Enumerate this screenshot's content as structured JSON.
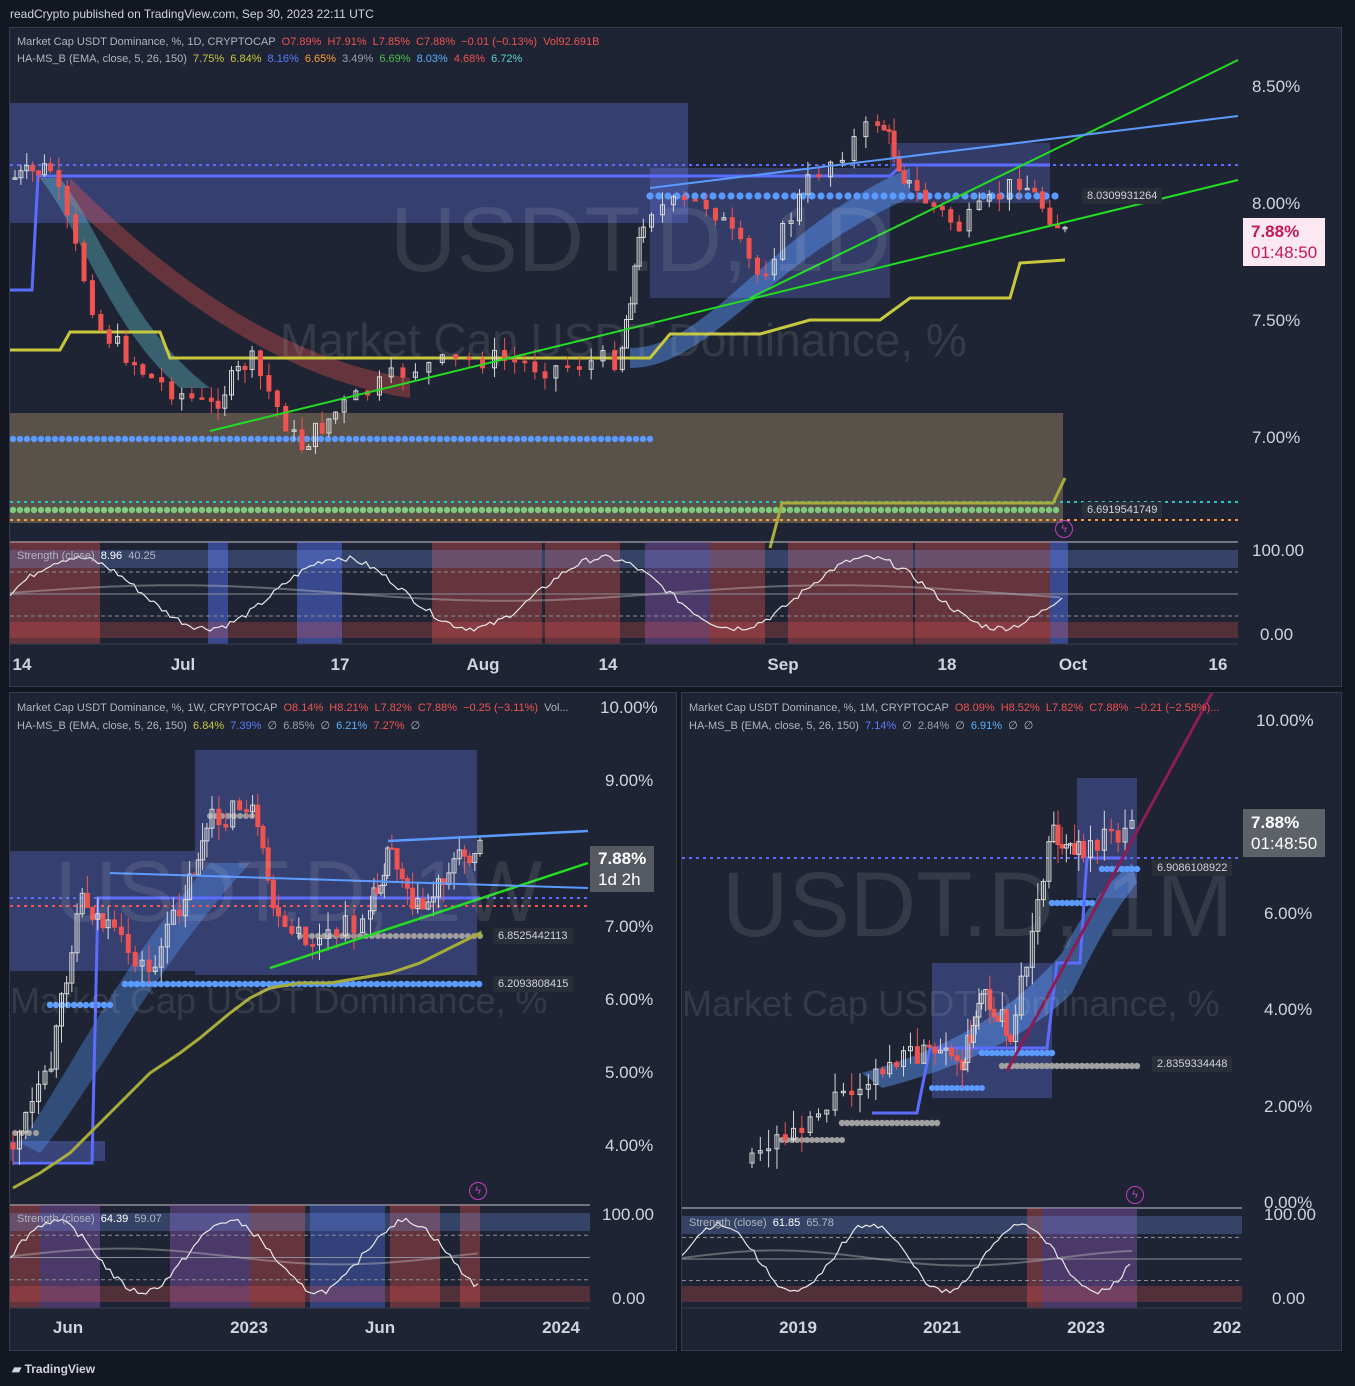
{
  "published": "readCrypto published on TradingView.com, Sep 30, 2023 22:11 UTC",
  "footer_brand": "TradingView",
  "colors": {
    "bg": "#131722",
    "panel": "#1e2433",
    "up": "#d9d9d9",
    "down": "#ef5350",
    "green": "#22dd22",
    "blue": "#4a6fff",
    "lightblue": "#5b9bff",
    "purple": "#8b1c55",
    "olive": "#a8ac3a"
  },
  "panels": {
    "daily": {
      "header1": [
        "Market Cap USDT Dominance, %, 1D, CRYPTOCAP",
        "O7.89%",
        "H7.91%",
        "L7.85%",
        "C7.88%",
        "−0.01 (−0.13%)",
        "Vol92.691B"
      ],
      "header2": [
        "HA-MS_B (EMA, close, 5, 26, 150)",
        "7.75%",
        "6.84%",
        "8.16%",
        "6.65%",
        "3.49%",
        "6.69%",
        "8.03%",
        "4.68%",
        "6.72%"
      ],
      "watermark1": "USDT.D, 1D",
      "watermark2": "Market Cap USDT Dominance, %",
      "y_ticks": [
        "8.50%",
        "8.00%",
        "7.50%",
        "7.00%"
      ],
      "x_ticks": [
        "14",
        "Jul",
        "17",
        "Aug",
        "14",
        "Sep",
        "18",
        "Oct",
        "16"
      ],
      "price": "7.88%",
      "countdown": "01:48:50",
      "level_tags": [
        "8.0309931264",
        "6.6919541749"
      ],
      "strength_label": "Strength (close)",
      "strength_v1": "8.96",
      "strength_v2": "40.25",
      "strength_ticks": [
        "100.00",
        "0.00"
      ]
    },
    "weekly": {
      "header1": [
        "Market Cap USDT Dominance, %, 1W, CRYPTOCAP",
        "O8.14%",
        "H8.21%",
        "L7.82%",
        "C7.88%",
        "−0.25 (−3.11%)",
        "Vol..."
      ],
      "header2": [
        "HA-MS_B (EMA, close, 5, 26, 150)",
        "6.84%",
        "7.39%",
        "∅",
        "6.85%",
        "∅",
        "6.21%",
        "7.27%",
        "∅"
      ],
      "watermark1": "USDT.D, 1W",
      "watermark2": "Market Cap USDT Dominance, %",
      "y_ticks": [
        "10.00%",
        "9.00%",
        "7.00%",
        "6.00%",
        "5.00%",
        "4.00%"
      ],
      "x_ticks": [
        "Jun",
        "2023",
        "Jun",
        "2024"
      ],
      "price": "7.88%",
      "countdown": "1d 2h",
      "level_tags": [
        "6.8525442113",
        "6.2093808415"
      ],
      "strength_label": "Strength (close)",
      "strength_v1": "64.39",
      "strength_v2": "59.07",
      "strength_ticks": [
        "100.00",
        "0.00"
      ]
    },
    "monthly": {
      "header1": [
        "Market Cap USDT Dominance, %, 1M, CRYPTOCAP",
        "O8.09%",
        "H8.52%",
        "L7.82%",
        "C7.88%",
        "−0.21 (−2.58%)..."
      ],
      "header2": [
        "HA-MS_B (EMA, close, 5, 26, 150)",
        "7.14%",
        "∅",
        "2.84%",
        "∅",
        "6.91%",
        "∅",
        "∅"
      ],
      "watermark1": "USDT.D, 1M",
      "watermark2": "Market Cap USDT Dominance, %",
      "y_ticks": [
        "10.00%",
        "6.00%",
        "4.00%",
        "2.00%",
        "0.00%"
      ],
      "x_ticks": [
        "2019",
        "2021",
        "2023",
        "202"
      ],
      "price": "7.88%",
      "countdown": "01:48:50",
      "level_tags": [
        "6.9086108922",
        "2.8359334448"
      ],
      "strength_label": "Strength (close)",
      "strength_v1": "61.85",
      "strength_v2": "65.78",
      "strength_ticks": [
        "100.00",
        "0.00"
      ]
    }
  }
}
